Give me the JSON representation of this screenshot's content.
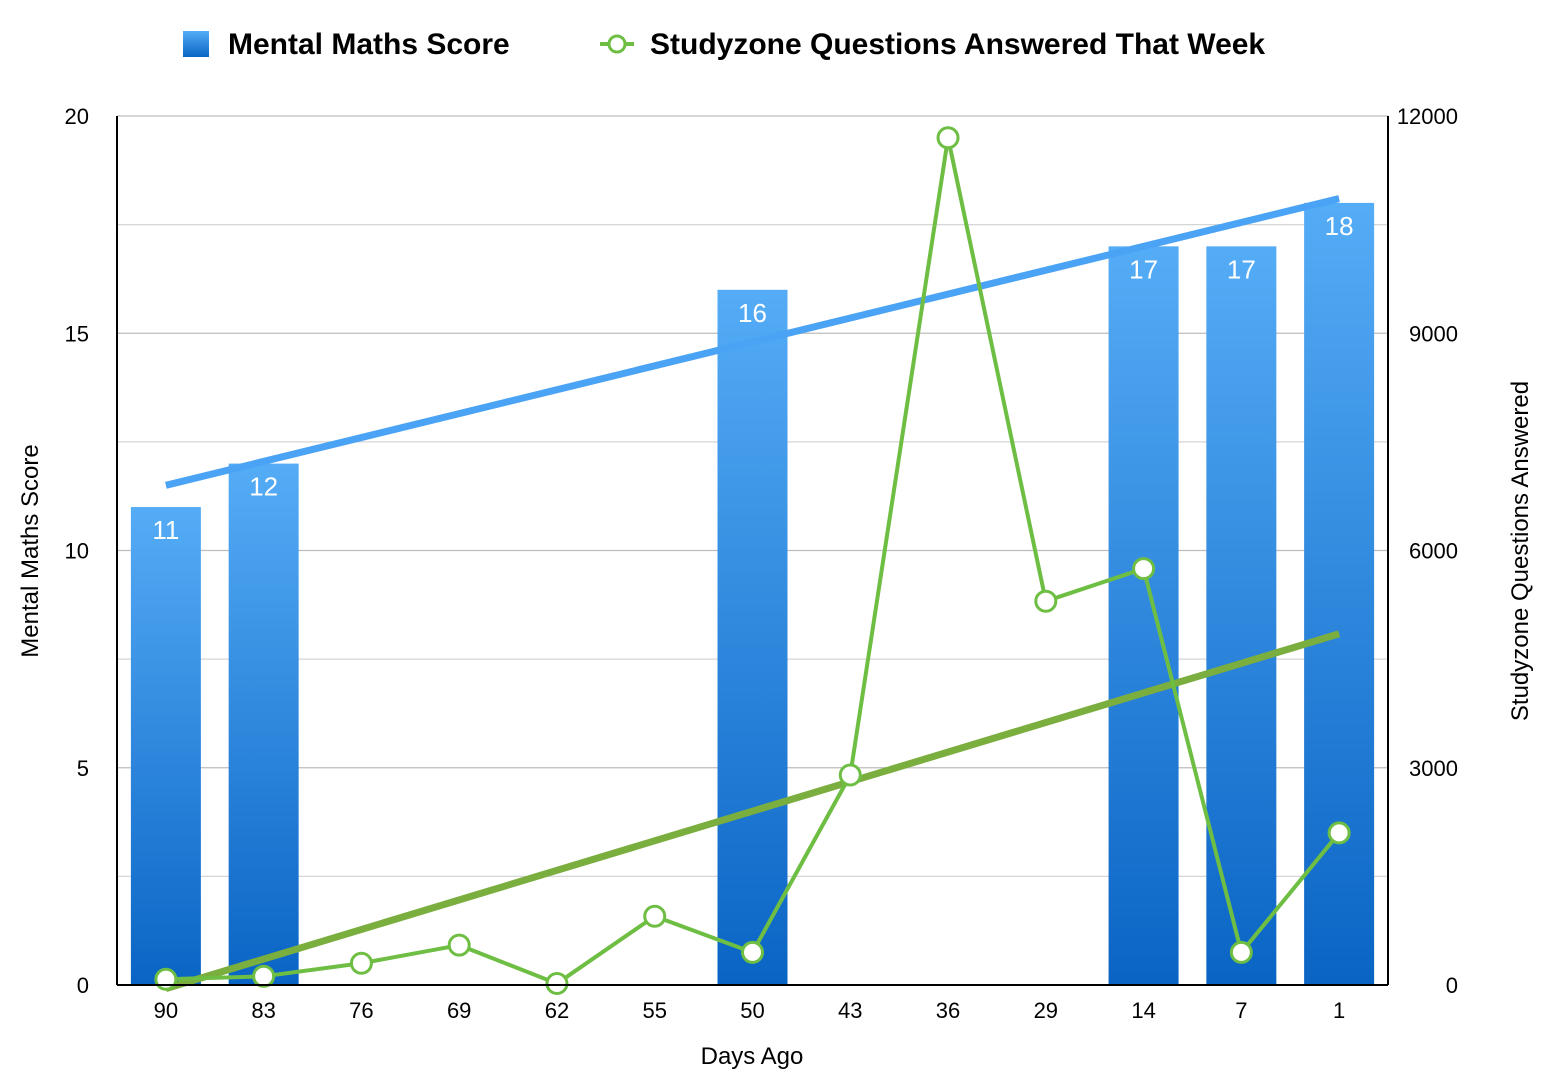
{
  "chart_data": {
    "type": "bar",
    "title": "",
    "categories": [
      "90",
      "83",
      "76",
      "69",
      "62",
      "55",
      "50",
      "43",
      "36",
      "29",
      "14",
      "7",
      "1"
    ],
    "xlabel": "Days Ago",
    "ylabel": "Mental Maths Score",
    "y2label": "Studyzone Questions Answered",
    "ylim": [
      0,
      20
    ],
    "y2lim": [
      0,
      12000
    ],
    "yticks": [
      "0",
      "5",
      "10",
      "15",
      "20"
    ],
    "y2ticks": [
      "0",
      "3000",
      "6000",
      "9000",
      "12000"
    ],
    "grid": true,
    "legend_position": "top",
    "series": [
      {
        "name": "Mental Maths Score",
        "type": "bar",
        "axis": "left",
        "color": "#2a83d9",
        "values": [
          11,
          12,
          null,
          null,
          null,
          null,
          16,
          null,
          null,
          null,
          17,
          17,
          18
        ],
        "labels": [
          "11",
          "12",
          "",
          "",
          "",
          "",
          "16",
          "",
          "",
          "",
          "17",
          "17",
          "18"
        ]
      },
      {
        "name": "Studyzone Questions Answered That Week",
        "type": "line",
        "axis": "right",
        "color": "#6ebe44",
        "values": [
          80,
          120,
          300,
          550,
          20,
          950,
          450,
          2900,
          11700,
          5300,
          5750,
          450,
          2100
        ]
      }
    ],
    "trendlines": [
      {
        "axis": "left",
        "color": "#4aa3f5",
        "start_value": 11.5,
        "end_value": 18.1
      },
      {
        "axis": "right",
        "color": "#7aae3e",
        "start_value": -50,
        "end_value": 4850
      }
    ]
  }
}
